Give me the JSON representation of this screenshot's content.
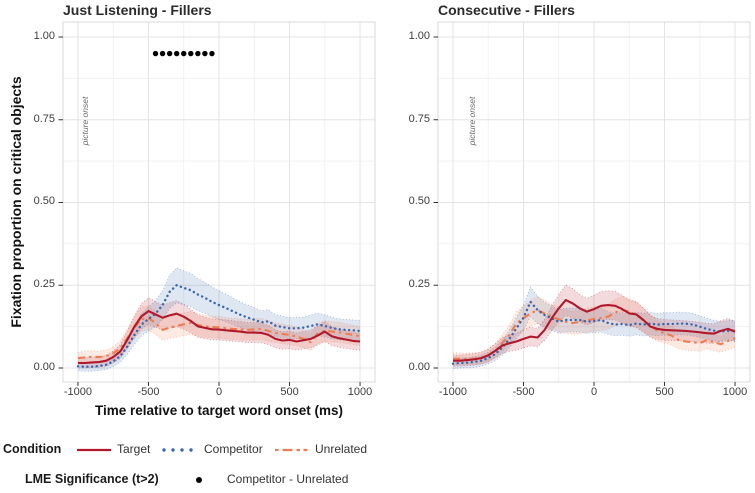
{
  "chart_data": {
    "type": "line",
    "x_label": "Time relative to target word onset (ms)",
    "y_label": "Fixation proportion on critical objects",
    "picture_onset_label": "picture onset",
    "xlim": [
      -1106,
      1106
    ],
    "ylim": [
      -0.0423,
      1.0453
    ],
    "x_ticks": [
      -1000,
      -500,
      0,
      500,
      1000
    ],
    "x_tick_labels": [
      "-1000",
      "-500",
      "0",
      "500",
      "1000"
    ],
    "x_minor": [
      -750,
      -250,
      250,
      750
    ],
    "y_ticks": [
      0,
      0.25,
      0.5,
      0.75,
      1
    ],
    "y_tick_labels": [
      "0.00",
      "0.25",
      "0.50",
      "0.75",
      "1.00"
    ],
    "y_minor": [
      0.125,
      0.375,
      0.625,
      0.875
    ],
    "grid": {
      "major_color": "#e3e3e3",
      "minor_color": "#f1f1f1",
      "border_color": "#d8d8d8"
    },
    "colors": {
      "target": "#b2182b",
      "competitor": "#3a68b0",
      "unrelated": "#ef7c50",
      "significance": "#000000"
    },
    "ribbon": {
      "base_halfwidth": 0.013,
      "scale_halfwidth": 0.16,
      "opacity": 0.16
    },
    "x": [
      -1000,
      -950,
      -900,
      -850,
      -800,
      -750,
      -700,
      -650,
      -600,
      -550,
      -500,
      -450,
      -400,
      -350,
      -300,
      -250,
      -200,
      -150,
      -100,
      -50,
      0,
      50,
      100,
      150,
      200,
      250,
      300,
      350,
      400,
      450,
      500,
      550,
      600,
      650,
      700,
      750,
      800,
      850,
      900,
      950,
      1000
    ],
    "panels": [
      {
        "title": "Just Listening - Fillers",
        "series": [
          {
            "name": "Target",
            "values": [
              0.015,
              0.015,
              0.017,
              0.018,
              0.022,
              0.033,
              0.05,
              0.085,
              0.125,
              0.156,
              0.172,
              0.162,
              0.152,
              0.159,
              0.164,
              0.155,
              0.142,
              0.126,
              0.121,
              0.117,
              0.116,
              0.114,
              0.112,
              0.11,
              0.107,
              0.107,
              0.106,
              0.1,
              0.088,
              0.083,
              0.085,
              0.08,
              0.084,
              0.088,
              0.098,
              0.11,
              0.096,
              0.09,
              0.086,
              0.082,
              0.08
            ]
          },
          {
            "name": "Competitor",
            "values": [
              0.005,
              0.004,
              0.004,
              0.006,
              0.01,
              0.02,
              0.036,
              0.065,
              0.1,
              0.131,
              0.148,
              0.164,
              0.19,
              0.23,
              0.25,
              0.242,
              0.235,
              0.222,
              0.212,
              0.2,
              0.19,
              0.181,
              0.171,
              0.161,
              0.153,
              0.146,
              0.138,
              0.141,
              0.128,
              0.124,
              0.12,
              0.12,
              0.122,
              0.127,
              0.132,
              0.127,
              0.121,
              0.117,
              0.115,
              0.114,
              0.112
            ]
          },
          {
            "name": "Unrelated",
            "values": [
              0.03,
              0.032,
              0.034,
              0.033,
              0.036,
              0.044,
              0.06,
              0.09,
              0.122,
              0.148,
              0.151,
              0.136,
              0.115,
              0.122,
              0.127,
              0.132,
              0.136,
              0.13,
              0.126,
              0.124,
              0.123,
              0.12,
              0.118,
              0.117,
              0.115,
              0.117,
              0.118,
              0.112,
              0.106,
              0.103,
              0.1,
              0.095,
              0.088,
              0.078,
              0.105,
              0.112,
              0.11,
              0.108,
              0.104,
              0.1,
              0.096
            ]
          }
        ],
        "significance_dots": {
          "y": 0.95,
          "x": [
            -450,
            -400,
            -350,
            -300,
            -250,
            -200,
            -150,
            -100,
            -50
          ]
        }
      },
      {
        "title": "Consecutive - Fillers",
        "series": [
          {
            "name": "Target",
            "values": [
              0.022,
              0.022,
              0.024,
              0.026,
              0.03,
              0.038,
              0.052,
              0.068,
              0.075,
              0.08,
              0.088,
              0.095,
              0.092,
              0.115,
              0.15,
              0.18,
              0.205,
              0.195,
              0.18,
              0.17,
              0.178,
              0.188,
              0.19,
              0.188,
              0.178,
              0.165,
              0.162,
              0.145,
              0.125,
              0.118,
              0.115,
              0.114,
              0.113,
              0.112,
              0.11,
              0.108,
              0.105,
              0.104,
              0.112,
              0.118,
              0.11
            ]
          },
          {
            "name": "Competitor",
            "values": [
              0.013,
              0.015,
              0.016,
              0.018,
              0.022,
              0.03,
              0.042,
              0.062,
              0.088,
              0.12,
              0.152,
              0.2,
              0.175,
              0.16,
              0.15,
              0.14,
              0.145,
              0.145,
              0.145,
              0.14,
              0.142,
              0.145,
              0.136,
              0.131,
              0.133,
              0.13,
              0.134,
              0.131,
              0.134,
              0.131,
              0.133,
              0.133,
              0.134,
              0.134,
              0.131,
              0.125,
              0.118,
              0.113,
              0.11,
              0.112,
              0.114
            ]
          },
          {
            "name": "Unrelated",
            "values": [
              0.028,
              0.028,
              0.027,
              0.028,
              0.031,
              0.038,
              0.052,
              0.075,
              0.1,
              0.135,
              0.15,
              0.165,
              0.175,
              0.165,
              0.155,
              0.147,
              0.14,
              0.136,
              0.139,
              0.144,
              0.148,
              0.151,
              0.155,
              0.168,
              0.175,
              0.17,
              0.16,
              0.145,
              0.128,
              0.112,
              0.105,
              0.098,
              0.085,
              0.08,
              0.078,
              0.075,
              0.085,
              0.078,
              0.072,
              0.082,
              0.09
            ]
          }
        ],
        "significance_dots": null
      }
    ]
  },
  "legend": {
    "condition_label": "Condition",
    "items": [
      {
        "label": "Target"
      },
      {
        "label": "Competitor"
      },
      {
        "label": "Unrelated"
      }
    ],
    "lme_label": "LME Significance (t>2)",
    "lme_item_label": "Competitor - Unrelated"
  }
}
